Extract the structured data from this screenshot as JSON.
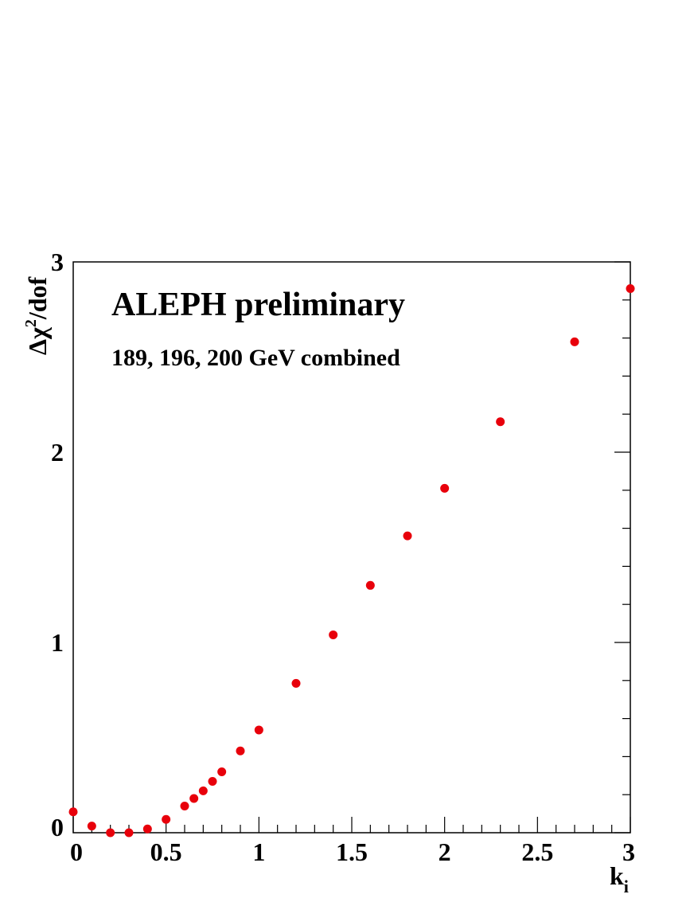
{
  "chart_data": {
    "type": "scatter",
    "title": "ALEPH preliminary",
    "subtitle": "189, 196, 200 GeV combined",
    "xlabel": {
      "main": "k",
      "sub": "i"
    },
    "ylabel": {
      "delta": "Δχ",
      "sup": "2",
      "rest": "/dof"
    },
    "xlim": [
      0,
      3
    ],
    "ylim": [
      0,
      3
    ],
    "x_ticks": [
      "0",
      "0.5",
      "1",
      "1.5",
      "2",
      "2.5",
      "3"
    ],
    "y_ticks": [
      "0",
      "1",
      "2",
      "3"
    ],
    "grid": false,
    "marker_color": "#e8000b",
    "series": [
      {
        "x": [
          0.0,
          0.1,
          0.2,
          0.3,
          0.4,
          0.5,
          0.6,
          0.65,
          0.7,
          0.75,
          0.8,
          0.9,
          1.0,
          1.2,
          1.4,
          1.6,
          1.8,
          2.0,
          2.3,
          2.7,
          3.0
        ],
        "y": [
          0.11,
          0.035,
          0.0,
          0.0,
          0.02,
          0.07,
          0.14,
          0.18,
          0.22,
          0.27,
          0.32,
          0.43,
          0.54,
          0.785,
          1.04,
          1.3,
          1.56,
          1.81,
          2.16,
          2.58,
          2.86
        ]
      }
    ]
  }
}
